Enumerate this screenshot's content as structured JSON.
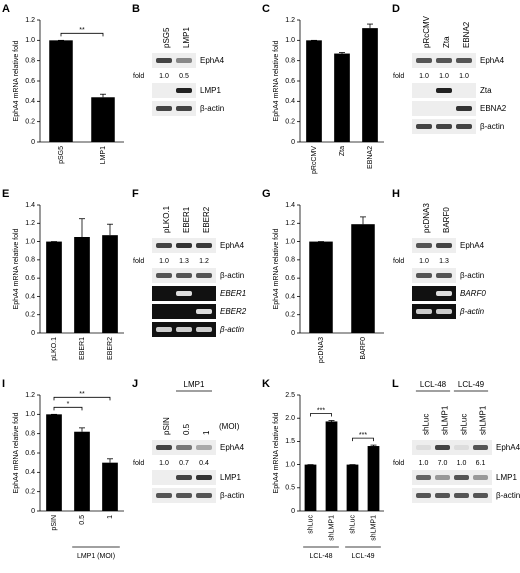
{
  "chart_data": [
    {
      "type": "bar",
      "panel": "A",
      "ylabel": "EphA4 mRNA relative fold",
      "categories": [
        "pSG5",
        "LMP1"
      ],
      "values": [
        1,
        0.44
      ],
      "errors": [
        0,
        0.03
      ],
      "color": "#000000",
      "ylim": [
        0,
        1.2
      ],
      "yticks": [
        0,
        0.2,
        0.4,
        0.6,
        0.8,
        {
          "value": 1,
          "label": "1.0"
        },
        1.2
      ],
      "significance": [
        {
          "label": "**",
          "from": 0,
          "to": 1
        }
      ]
    },
    {
      "type": "bar",
      "panel": "C",
      "ylabel": "EphA4 mRNA relative fold",
      "categories": [
        "pRcCMV",
        "Zta",
        "EBNA2"
      ],
      "values": [
        1,
        0.87,
        1.12
      ],
      "errors": [
        0,
        0.01,
        0.04
      ],
      "color": "#000000",
      "ylim": [
        0,
        1.2
      ],
      "yticks": [
        0,
        0.2,
        0.4,
        0.6,
        0.8,
        {
          "value": 1,
          "label": "1.0"
        },
        1.2
      ]
    },
    {
      "type": "bar",
      "panel": "E",
      "ylabel": "EphA4 mRNA relative fold",
      "categories": [
        "pLKO.1",
        "EBER1",
        "EBER2"
      ],
      "values": [
        1,
        1.05,
        1.07
      ],
      "errors": [
        0,
        0.2,
        0.12
      ],
      "color": "#000000",
      "ylim": [
        0,
        1.4
      ],
      "yticks": [
        0,
        0.2,
        0.4,
        0.6,
        0.8,
        {
          "value": 1,
          "label": "1.0"
        },
        1.2,
        1.4
      ]
    },
    {
      "type": "bar",
      "panel": "G",
      "ylabel": "EphA4 mRNA relative fold",
      "categories": [
        "pcDNA3",
        "BARF0"
      ],
      "values": [
        1,
        1.19
      ],
      "errors": [
        0,
        0.08
      ],
      "color": "#000000",
      "ylim": [
        0,
        1.4
      ],
      "yticks": [
        0,
        0.2,
        0.4,
        0.6,
        0.8,
        {
          "value": 1,
          "label": "1.0"
        },
        1.2,
        1.4
      ]
    },
    {
      "type": "bar",
      "panel": "I",
      "ylabel": "EphA4 mRNA relative fold",
      "categories": [
        "pSIN",
        "0.5",
        "1"
      ],
      "values": [
        1,
        0.82,
        0.5
      ],
      "errors": [
        0,
        0.04,
        0.04
      ],
      "color": "#000000",
      "ylim": [
        0,
        1.2
      ],
      "yticks": [
        0,
        0.2,
        0.4,
        0.6,
        0.8,
        {
          "value": 1,
          "label": "1.0"
        },
        1.2
      ],
      "significance": [
        {
          "label": "*",
          "from": 0,
          "to": 1
        },
        {
          "label": "**",
          "from": 0,
          "to": 2
        }
      ],
      "groups": [
        {
          "label": "LMP1 (MOI)",
          "from": 1,
          "to": 2
        }
      ]
    },
    {
      "type": "bar",
      "panel": "K",
      "ylabel": "EphA4 mRNA relative fold",
      "categories": [
        "shLuc",
        "shLMP1",
        "shLuc",
        "shLMP1"
      ],
      "values": [
        1,
        1.93,
        1,
        1.4
      ],
      "errors": [
        0,
        0.02,
        0,
        0.02
      ],
      "color": "#000000",
      "ylim": [
        0,
        2.5
      ],
      "yticks": [
        0,
        0.5,
        {
          "value": 1,
          "label": "1.0"
        },
        1.5,
        {
          "value": 2,
          "label": "2.0"
        },
        2.5
      ],
      "significance": [
        {
          "label": "***",
          "from": 0,
          "to": 1
        },
        {
          "label": "***",
          "from": 2,
          "to": 3
        }
      ],
      "groups": [
        {
          "label": "LCL-48",
          "from": 0,
          "to": 1
        },
        {
          "label": "LCL-49",
          "from": 2,
          "to": 3
        }
      ]
    }
  ],
  "blots": [
    {
      "panel": "B",
      "lanes": [
        "pSG5",
        "LMP1"
      ],
      "rows": [
        {
          "label": "EphA4",
          "bands": [
            "#444",
            "#888"
          ]
        },
        {
          "fold": "fold",
          "values": [
            "1.0",
            "0.5"
          ]
        },
        {
          "label": "LMP1",
          "bands": [
            "#eee",
            "#222"
          ]
        },
        {
          "label": "β-actin",
          "bands": [
            "#444",
            "#444"
          ]
        }
      ]
    },
    {
      "panel": "D",
      "lanes": [
        "pRcCMV",
        "Zta",
        "EBNA2"
      ],
      "rows": [
        {
          "label": "EphA4",
          "bands": [
            "#555",
            "#555",
            "#555"
          ]
        },
        {
          "fold": "fold",
          "values": [
            "1.0",
            "1.0",
            "1.0"
          ]
        },
        {
          "label": "Zta",
          "bands": [
            "#eee",
            "#222",
            "#eee"
          ]
        },
        {
          "label": "EBNA2",
          "bands": [
            "#eee",
            "#eee",
            "#333"
          ]
        },
        {
          "label": "β-actin",
          "bands": [
            "#444",
            "#444",
            "#444"
          ]
        }
      ]
    },
    {
      "panel": "F",
      "lanes": [
        "pLKO.1",
        "EBER1",
        "EBER2"
      ],
      "rows": [
        {
          "label": "EphA4",
          "bands": [
            "#444",
            "#333",
            "#3a3a3a"
          ]
        },
        {
          "fold": "fold",
          "values": [
            "1.0",
            "1.3",
            "1.2"
          ]
        },
        {
          "label": "β-actin",
          "bands": [
            "#555",
            "#555",
            "#555"
          ]
        },
        {
          "label": "EBER1",
          "bands": [
            "#111",
            "#ddd",
            "#111"
          ],
          "gel": true,
          "italic": true
        },
        {
          "label": "EBER2",
          "bands": [
            "#111",
            "#111",
            "#ddd"
          ],
          "gel": true,
          "italic": true
        },
        {
          "label": "β-actin",
          "bands": [
            "#ccc",
            "#ccc",
            "#ccc"
          ],
          "gel": true,
          "italic": true
        }
      ]
    },
    {
      "panel": "H",
      "lanes": [
        "pcDNA3",
        "BARF0"
      ],
      "rows": [
        {
          "label": "EphA4",
          "bands": [
            "#555",
            "#444"
          ]
        },
        {
          "fold": "fold",
          "values": [
            "1.0",
            "1.3"
          ]
        },
        {
          "label": "β-actin",
          "bands": [
            "#555",
            "#555"
          ]
        },
        {
          "label": "BARF0",
          "bands": [
            "#111",
            "#ddd"
          ],
          "gel": true,
          "italic": true
        },
        {
          "label": "β-actin",
          "bands": [
            "#ccc",
            "#ccc"
          ],
          "gel": true,
          "italic": true
        }
      ]
    },
    {
      "panel": "J",
      "lanes": [
        "pSIN",
        "0.5",
        "1"
      ],
      "lane_groups": [
        {
          "label": "LMP1",
          "from": 1,
          "to": 2
        }
      ],
      "lane_note": "(MOI)",
      "rows": [
        {
          "label": "EphA4",
          "bands": [
            "#444",
            "#777",
            "#aaa"
          ]
        },
        {
          "fold": "fold",
          "values": [
            "1.0",
            "0.7",
            "0.4"
          ]
        },
        {
          "label": "LMP1",
          "bands": [
            "#eee",
            "#444",
            "#333"
          ]
        },
        {
          "label": "β-actin",
          "bands": [
            "#555",
            "#555",
            "#555"
          ]
        }
      ]
    },
    {
      "panel": "L",
      "lanes": [
        "shLuc",
        "shLMP1",
        "shLuc",
        "shLMP1"
      ],
      "lane_groups": [
        {
          "label": "LCL-48",
          "from": 0,
          "to": 1
        },
        {
          "label": "LCL-49",
          "from": 2,
          "to": 3
        }
      ],
      "rows": [
        {
          "label": "EphA4",
          "bands": [
            "#ddd",
            "#444",
            "#ddd",
            "#555"
          ]
        },
        {
          "fold": "fold",
          "values": [
            "1.0",
            "7.0",
            "1.0",
            "6.1"
          ]
        },
        {
          "label": "LMP1",
          "bands": [
            "#666",
            "#999",
            "#555",
            "#999"
          ]
        },
        {
          "label": "β-actin",
          "bands": [
            "#555",
            "#555",
            "#555",
            "#555"
          ]
        }
      ]
    }
  ]
}
